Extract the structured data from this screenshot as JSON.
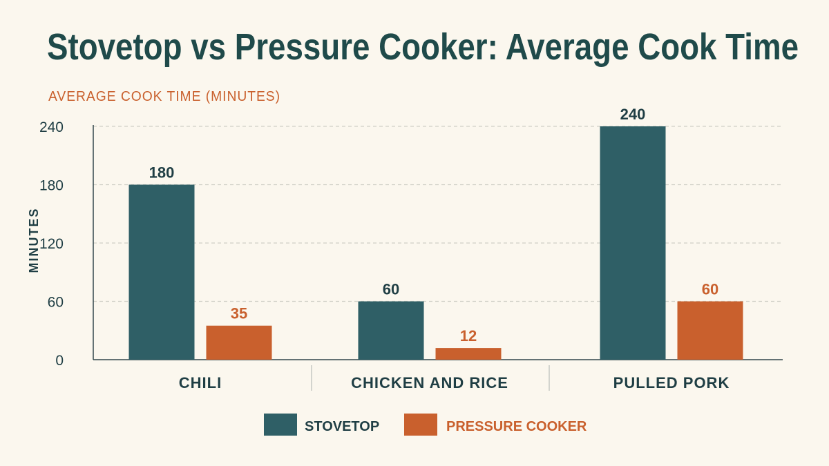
{
  "chart_data": {
    "type": "bar",
    "title": "Stovetop vs Pressure Cooker: Average Cook Time",
    "subtitle": "AVERAGE COOK TIME (MINUTES)",
    "xlabel": "",
    "ylabel": "MINUTES",
    "categories": [
      "CHILI",
      "CHICKEN AND RICE",
      "PULLED PORK"
    ],
    "series": [
      {
        "name": "STOVETOP",
        "values": [
          180,
          60,
          240
        ],
        "color": "#2f5f66"
      },
      {
        "name": "PRESSURE COOKER",
        "values": [
          35,
          12,
          60
        ],
        "color": "#c9602d"
      }
    ],
    "yticks": [
      0,
      60,
      120,
      180,
      240
    ],
    "ylim": [
      0,
      240
    ],
    "grid": true,
    "legend_position": "bottom-center"
  },
  "colors": {
    "background": "#fbf7ee",
    "title": "#1f4a4a",
    "subtitle": "#c9602d",
    "axis_text": "#1f3e44",
    "grid": "#cfcfc6"
  }
}
